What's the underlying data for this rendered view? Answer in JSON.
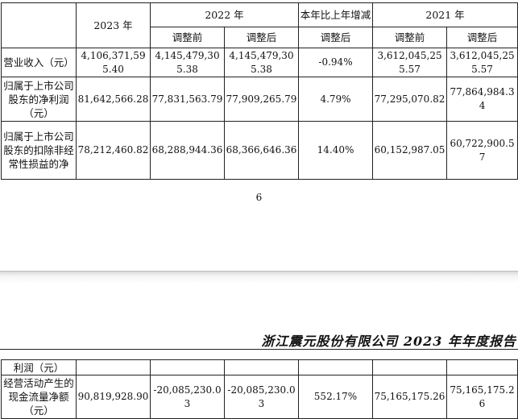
{
  "table_top": {
    "header": {
      "y2023": "2023 年",
      "y2022": "2022 年",
      "change": "本年比上年增减",
      "y2021": "2021 年",
      "before": "调整前",
      "after": "调整后",
      "change_sub": "调整后"
    },
    "rows": [
      {
        "label": "营业收入（元）",
        "v2023": "4,106,371,595.40",
        "v2022_before": "4,145,479,305.38",
        "v2022_after": "4,145,479,305.38",
        "change": "-0.94%",
        "v2021_before": "3,612,045,255.57",
        "v2021_after": "3,612,045,255.57"
      },
      {
        "label": "归属于上市公司股东的净利润（元）",
        "v2023": "81,642,566.28",
        "v2022_before": "77,831,563.79",
        "v2022_after": "77,909,265.79",
        "change": "4.79%",
        "v2021_before": "77,295,070.82",
        "v2021_after": "77,864,984.34"
      },
      {
        "label": "归属于上市公司股东的扣除非经常性损益的净",
        "v2023": "78,212,460.82",
        "v2022_before": "68,288,944.36",
        "v2022_after": "68,366,646.36",
        "change": "14.40%",
        "v2021_before": "60,152,987.05",
        "v2021_after": "60,722,900.57"
      }
    ]
  },
  "page_number": "6",
  "running_header": "浙江震元股份有限公司 2023 年年度报告",
  "table_bottom": {
    "rows": [
      {
        "label": "利润（元）",
        "v2023": "",
        "v2022_before": "",
        "v2022_after": "",
        "change": "",
        "v2021_before": "",
        "v2021_after": ""
      },
      {
        "label": "经营活动产生的现金流量净额（元）",
        "v2023": "90,819,928.90",
        "v2022_before": "-20,085,230.03",
        "v2022_after": "-20,085,230.03",
        "change": "552.17%",
        "v2021_before": "75,165,175.26",
        "v2021_after": "75,165,175.26"
      }
    ]
  }
}
